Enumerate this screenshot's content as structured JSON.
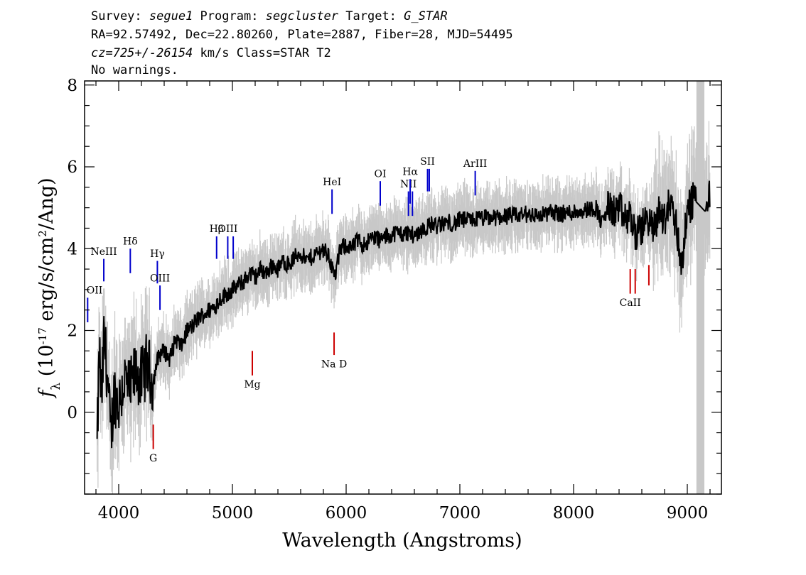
{
  "header": {
    "line1": [
      {
        "t": "Survey: ",
        "it": false
      },
      {
        "t": "segue1",
        "it": true
      },
      {
        "t": " Program: ",
        "it": false
      },
      {
        "t": "segcluster",
        "it": true
      },
      {
        "t": " Target: ",
        "it": false
      },
      {
        "t": "G_STAR",
        "it": true
      }
    ],
    "line2": "RA=92.57492, Dec=22.80260, Plate=2887, Fiber=28, MJD=54495",
    "line3": [
      {
        "t": "cz=725+/-26154",
        "it": true
      },
      {
        "t": " km/s Class=STAR T2",
        "it": false
      }
    ],
    "line4": "No warnings."
  },
  "chart_data": {
    "type": "line",
    "xlabel": "Wavelength (Angstroms)",
    "ylabel": "f_λ (10^-17 erg/s/cm^2/Ang)",
    "xlim": [
      3700,
      9300
    ],
    "ylim": [
      -2.0,
      8.1
    ],
    "x_ticks": [
      4000,
      5000,
      6000,
      7000,
      8000,
      9000
    ],
    "y_ticks": [
      0,
      2,
      4,
      6,
      8
    ],
    "x_minor_step": 200,
    "y_minor_step": 0.5,
    "masked_region": [
      9080,
      9150
    ],
    "colors": {
      "flux": "#000000",
      "error": "#c8c8c8",
      "emission": "#0000cc",
      "absorption": "#cc0000",
      "mask": "#c8c8c8"
    },
    "series": [
      {
        "name": "flux",
        "x": [
          3810,
          3830,
          3850,
          3870,
          3900,
          3930,
          3960,
          4000,
          4050,
          4100,
          4150,
          4200,
          4250,
          4300,
          4350,
          4400,
          4450,
          4500,
          4550,
          4600,
          4650,
          4700,
          4750,
          4800,
          4850,
          4900,
          4950,
          5000,
          5050,
          5100,
          5150,
          5200,
          5250,
          5300,
          5350,
          5400,
          5450,
          5500,
          5550,
          5600,
          5650,
          5700,
          5750,
          5800,
          5850,
          5900,
          5950,
          6000,
          6050,
          6100,
          6150,
          6200,
          6250,
          6300,
          6350,
          6400,
          6450,
          6500,
          6550,
          6600,
          6650,
          6700,
          6750,
          6800,
          6850,
          6900,
          6950,
          7000,
          7100,
          7200,
          7300,
          7400,
          7500,
          7600,
          7700,
          7800,
          7900,
          8000,
          8100,
          8200,
          8250,
          8300,
          8350,
          8400,
          8450,
          8500,
          8550,
          8600,
          8650,
          8700,
          8750,
          8800,
          8850,
          8900,
          8950,
          9000,
          9050,
          9100,
          9150,
          9200
        ],
        "y": [
          -0.9,
          1.5,
          0.2,
          1.8,
          1.0,
          -0.7,
          0.5,
          0.2,
          0.8,
          0.5,
          1.0,
          0.8,
          1.2,
          0.7,
          1.4,
          1.5,
          1.3,
          1.8,
          1.6,
          2.0,
          2.1,
          2.3,
          2.4,
          2.5,
          2.6,
          2.8,
          2.9,
          3.0,
          3.1,
          3.2,
          3.4,
          3.3,
          3.5,
          3.4,
          3.6,
          3.5,
          3.7,
          3.6,
          3.8,
          3.9,
          3.7,
          3.8,
          3.9,
          4.0,
          3.8,
          3.3,
          4.0,
          4.1,
          4.0,
          4.2,
          4.1,
          4.2,
          4.3,
          4.2,
          4.3,
          4.35,
          4.4,
          4.35,
          4.4,
          4.3,
          4.45,
          4.5,
          4.6,
          4.55,
          4.6,
          4.65,
          4.6,
          4.7,
          4.7,
          4.75,
          4.75,
          4.8,
          4.8,
          4.85,
          4.8,
          4.9,
          4.85,
          4.9,
          4.95,
          5.0,
          4.6,
          5.0,
          4.9,
          5.0,
          4.7,
          4.8,
          4.3,
          4.5,
          4.8,
          4.4,
          4.9,
          4.7,
          5.2,
          4.6,
          3.6,
          4.9,
          5.2,
          5.7,
          4.6,
          5.5
        ]
      }
    ],
    "annotations": [
      {
        "label": "OII",
        "x": 3727,
        "kind": "emission",
        "y_line": [
          2.2,
          2.8
        ],
        "label_y": 2.9
      },
      {
        "label": "NeIII",
        "x": 3869,
        "kind": "emission",
        "y_line": [
          3.2,
          3.75
        ],
        "label_y": 3.85
      },
      {
        "label": "Hδ",
        "x": 4102,
        "kind": "emission",
        "y_line": [
          3.4,
          4.0
        ],
        "label_y": 4.1
      },
      {
        "label": "Hγ",
        "x": 4340,
        "kind": "emission",
        "y_line": [
          3.15,
          3.7
        ],
        "label_y": 3.8
      },
      {
        "label": "OIII",
        "x": 4363,
        "kind": "emission",
        "y_line": [
          2.5,
          3.1
        ],
        "label_y": 3.2
      },
      {
        "label": "Hβ",
        "x": 4861,
        "kind": "emission",
        "y_line": [
          3.75,
          4.3
        ],
        "label_y": 4.4
      },
      {
        "label": "OIII",
        "x": 4959,
        "kind": "emission",
        "y_line": [
          3.75,
          4.3
        ],
        "label_y": 4.4
      },
      {
        "label": "OIII",
        "x": 5007,
        "kind": "emission",
        "y_line": [
          3.75,
          4.3
        ],
        "label_y": 4.4
      },
      {
        "label": "HeI",
        "x": 5876,
        "kind": "emission",
        "y_line": [
          4.85,
          5.45
        ],
        "label_y": 5.55
      },
      {
        "label": "OI",
        "x": 6300,
        "kind": "emission",
        "y_line": [
          5.05,
          5.65
        ],
        "label_y": 5.75
      },
      {
        "label": "NII",
        "x": 6548,
        "kind": "emission",
        "y_line": [
          4.8,
          5.4
        ],
        "label_y": 5.5
      },
      {
        "label": "Hα",
        "x": 6563,
        "kind": "emission",
        "y_line": [
          5.1,
          5.7
        ],
        "label_y": 5.8
      },
      {
        "label": "NII",
        "x": 6583,
        "kind": "emission",
        "y_line": [
          4.8,
          5.4
        ],
        "label_y": 5.5
      },
      {
        "label": "SII",
        "x": 6716,
        "kind": "emission",
        "y_line": [
          5.4,
          5.95
        ],
        "label_y": 6.05
      },
      {
        "label": "SII",
        "x": 6731,
        "kind": "emission",
        "y_line": [
          5.4,
          5.95
        ],
        "label_y": 6.05
      },
      {
        "label": "ArIII",
        "x": 7135,
        "kind": "emission",
        "y_line": [
          5.3,
          5.9
        ],
        "label_y": 6.0
      },
      {
        "label": "G",
        "x": 4304,
        "kind": "absorption",
        "y_line": [
          -0.9,
          -0.3
        ],
        "label_y": -1.2
      },
      {
        "label": "Mg",
        "x": 5175,
        "kind": "absorption",
        "y_line": [
          0.9,
          1.5
        ],
        "label_y": 0.6
      },
      {
        "label": "Na D",
        "x": 5894,
        "kind": "absorption",
        "y_line": [
          1.4,
          1.95
        ],
        "label_y": 1.1
      },
      {
        "label": "CaII",
        "x": 8498,
        "kind": "absorption",
        "y_line": [
          2.9,
          3.5
        ],
        "label_y": 2.6
      },
      {
        "label": "CaII",
        "x": 8542,
        "kind": "absorption",
        "y_line": [
          2.9,
          3.5
        ],
        "label_y": 2.6
      },
      {
        "label": "CaII",
        "x": 8662,
        "kind": "absorption",
        "y_line": [
          3.1,
          3.6
        ],
        "label_y": 2.6
      }
    ]
  }
}
